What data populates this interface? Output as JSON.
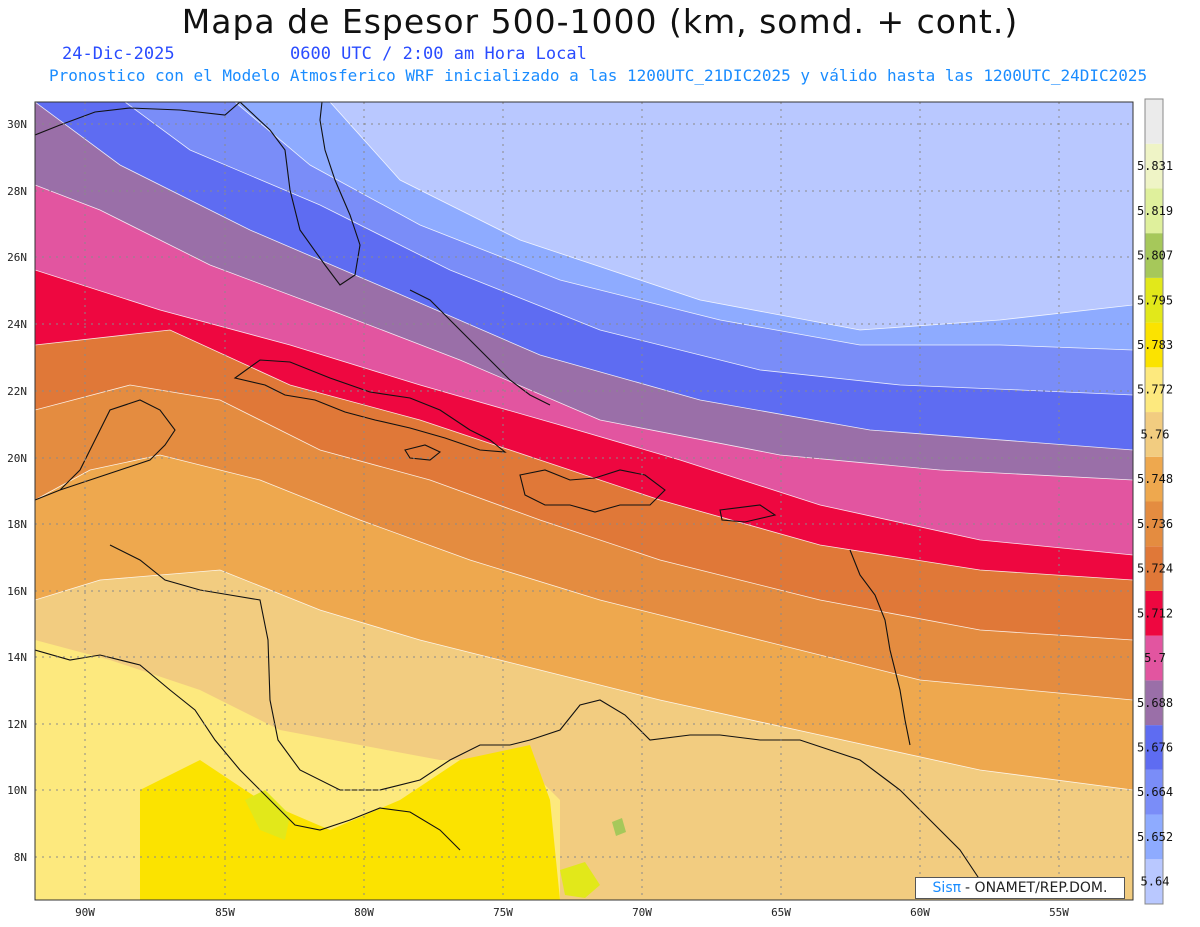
{
  "header": {
    "title": "Mapa de Espesor 500-1000 (km, somd. + cont.)",
    "date": "24-Dic-2025",
    "time": "0600 UTC / 2:00 am Hora Local",
    "model_note": "Pronostico con el Modelo Atmosferico WRF inicializado a las 1200UTC_21DIC2025 y válido hasta las  1200UTC_24DIC2025"
  },
  "map": {
    "lon_ticks": [
      "90W",
      "85W",
      "80W",
      "75W",
      "70W",
      "65W",
      "60W",
      "55W"
    ],
    "lat_ticks": [
      "30N",
      "28N",
      "26N",
      "24N",
      "22N",
      "20N",
      "18N",
      "16N",
      "14N",
      "12N",
      "10N",
      "8N"
    ]
  },
  "colorbar": {
    "levels": [
      "5.64",
      "5.652",
      "5.664",
      "5.676",
      "5.688",
      "5.7",
      "5.712",
      "5.724",
      "5.736",
      "5.748",
      "5.76",
      "5.772",
      "5.783",
      "5.795",
      "5.807",
      "5.819",
      "5.831"
    ],
    "colors": [
      "#b9c8ff",
      "#8eabff",
      "#7a8df8",
      "#5e6cf2",
      "#9a6fa8",
      "#e255a0",
      "#ee0740",
      "#e07838",
      "#e48c40",
      "#eea84e",
      "#f2cc80",
      "#fde97e",
      "#fbe300",
      "#e2e81a",
      "#a6c85a",
      "#dff09c",
      "#eff4c6",
      "#ebebeb"
    ]
  },
  "credit": {
    "sis": "Sisπ",
    "text": "- ONAMET/REP.DOM."
  }
}
